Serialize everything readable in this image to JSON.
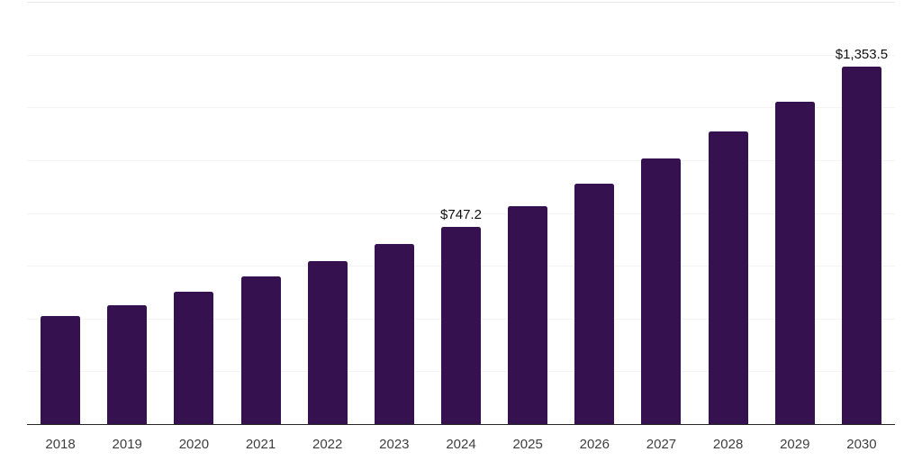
{
  "chart_data": {
    "type": "bar",
    "title": "",
    "xlabel": "",
    "ylabel": "",
    "categories": [
      "2018",
      "2019",
      "2020",
      "2021",
      "2022",
      "2023",
      "2024",
      "2025",
      "2026",
      "2027",
      "2028",
      "2029",
      "2030"
    ],
    "values": [
      410,
      451,
      502,
      560,
      617,
      681,
      747.2,
      825,
      910,
      1006,
      1108,
      1222,
      1353.5
    ],
    "value_labels": [
      null,
      null,
      null,
      null,
      null,
      null,
      "$747.2",
      null,
      null,
      null,
      null,
      null,
      "$1,353.5"
    ],
    "ylim": [
      0,
      1600
    ],
    "grid": true,
    "grid_interval": 200,
    "y_tick_labels_visible": false,
    "legend": false,
    "colors": {
      "bar": "#351150",
      "value_label_text": "#111111",
      "tick_label_text": "#3f3f3f",
      "axis_line": "#262626",
      "gridline": "#f4f4f4",
      "top_border": "#e7e7e7",
      "background": "#ffffff"
    }
  }
}
